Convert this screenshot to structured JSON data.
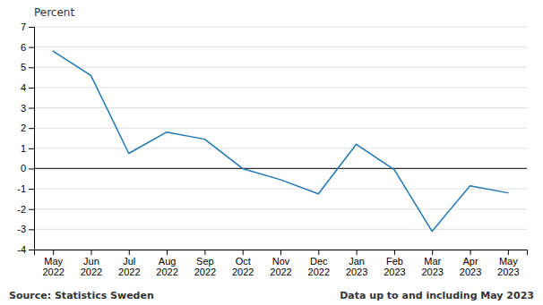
{
  "chart_data": {
    "type": "line",
    "y_label": "Percent",
    "categories": [
      "May\n2022",
      "Jun\n2022",
      "Jul\n2022",
      "Aug\n2022",
      "Sep\n2022",
      "Oct\n2022",
      "Nov\n2022",
      "Dec\n2022",
      "Jan\n2023",
      "Feb\n2023",
      "Mar\n2023",
      "Apr\n2023",
      "May\n2023"
    ],
    "values": [
      5.8,
      4.6,
      0.75,
      1.8,
      1.45,
      0.0,
      -0.55,
      -1.25,
      1.2,
      -0.05,
      -3.1,
      -0.85,
      -1.2
    ],
    "ylim": [
      -4,
      7
    ],
    "yticks": [
      -4,
      -3,
      -2,
      -1,
      0,
      1,
      2,
      3,
      4,
      5,
      6,
      7
    ],
    "grid": true,
    "annotations": [
      "Source: Statistics Sweden",
      "Data up to and including May 2023"
    ]
  }
}
